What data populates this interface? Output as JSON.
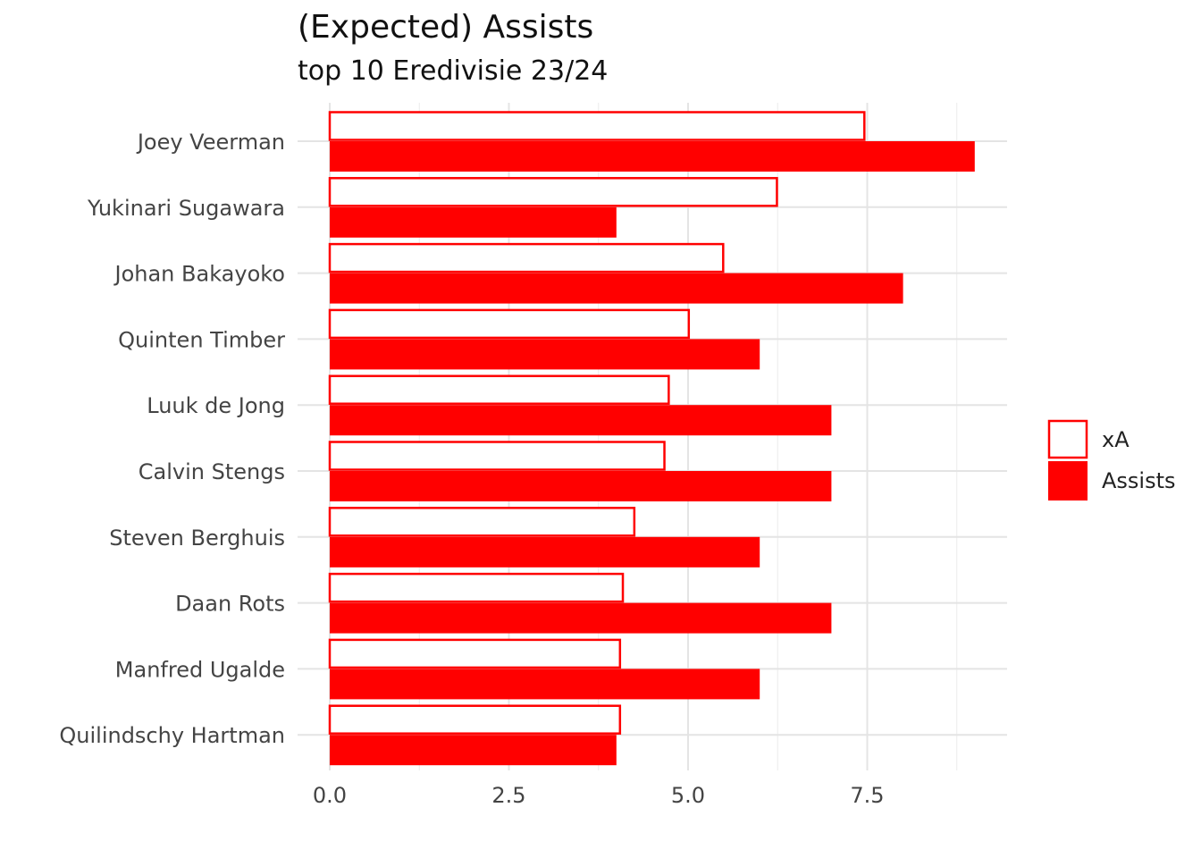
{
  "chart_data": {
    "type": "bar",
    "orientation": "horizontal",
    "title": "(Expected) Assists",
    "subtitle": "top 10 Eredivisie 23/24",
    "xlabel": "",
    "ylabel": "",
    "categories": [
      "Joey Veerman",
      "Yukinari Sugawara",
      "Johan Bakayoko",
      "Quinten Timber",
      "Luuk de Jong",
      "Calvin Stengs",
      "Steven Berghuis",
      "Daan Rots",
      "Manfred Ugalde",
      "Quilindschy Hartman"
    ],
    "series": [
      {
        "name": "xA",
        "values": [
          7.46,
          6.24,
          5.49,
          5.01,
          4.73,
          4.67,
          4.25,
          4.09,
          4.05,
          4.05
        ],
        "fill": "#ffffff",
        "stroke": "#ff0000"
      },
      {
        "name": "Assists",
        "values": [
          9,
          4,
          8,
          6,
          7,
          7,
          6,
          7,
          6,
          4
        ],
        "fill": "#ff0000",
        "stroke": "#ff0000"
      }
    ],
    "xlim": [
      0,
      9.45
    ],
    "xticks": [
      0,
      2.5,
      5.0,
      7.5
    ],
    "xtick_labels": [
      "0.0",
      "2.5",
      "5.0",
      "7.5"
    ],
    "grid": true,
    "legend": "right"
  }
}
